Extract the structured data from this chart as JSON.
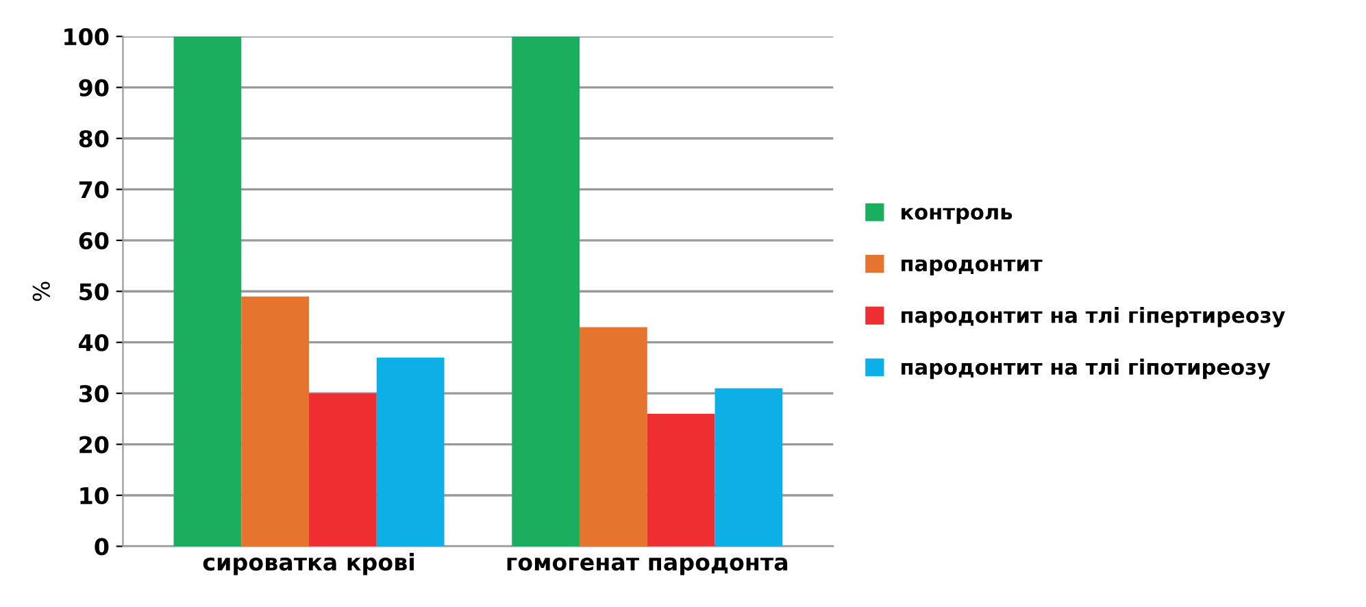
{
  "chart_data": {
    "type": "bar",
    "ylabel": "%",
    "categories": [
      "сироватка крові",
      "гомогенат пародонта"
    ],
    "series": [
      {
        "name": "контроль",
        "color": "#1aaf5f",
        "values": [
          100,
          100
        ]
      },
      {
        "name": "пародонтит",
        "color": "#e5742e",
        "values": [
          49,
          43
        ]
      },
      {
        "name": "пародонтит на тлі гіпертиреозу",
        "color": "#ee2e31",
        "values": [
          30,
          26
        ]
      },
      {
        "name": "пародонтит на тлі гіпотиреозу",
        "color": "#0db0e6",
        "values": [
          37,
          31
        ]
      }
    ],
    "ylim": [
      0,
      100
    ],
    "yticks": [
      0,
      10,
      20,
      30,
      40,
      50,
      60,
      70,
      80,
      90,
      100
    ],
    "grid": "y",
    "legend": "right"
  }
}
